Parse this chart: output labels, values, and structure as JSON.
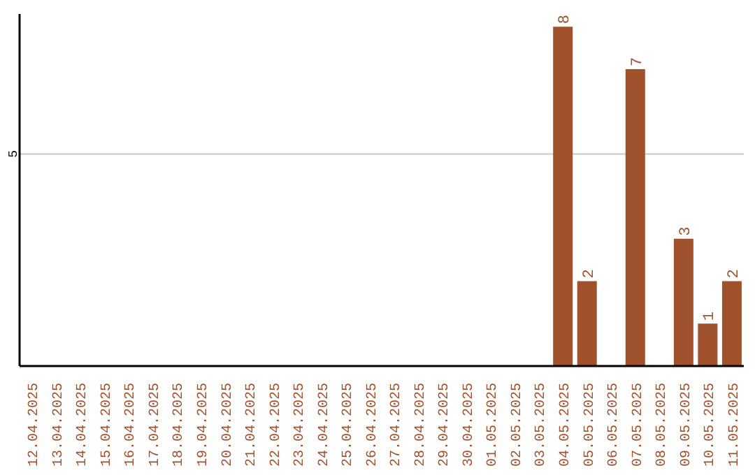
{
  "chart_data": {
    "type": "bar",
    "categories": [
      "12.04.2025",
      "13.04.2025",
      "14.04.2025",
      "15.04.2025",
      "16.04.2025",
      "17.04.2025",
      "18.04.2025",
      "19.04.2025",
      "20.04.2025",
      "21.04.2025",
      "22.04.2025",
      "23.04.2025",
      "24.04.2025",
      "25.04.2025",
      "26.04.2025",
      "27.04.2025",
      "28.04.2025",
      "29.04.2025",
      "30.04.2025",
      "01.05.2025",
      "02.05.2025",
      "03.05.2025",
      "04.05.2025",
      "05.05.2025",
      "06.05.2025",
      "07.05.2025",
      "08.05.2025",
      "09.05.2025",
      "10.05.2025",
      "11.05.2025"
    ],
    "values": [
      null,
      null,
      null,
      null,
      null,
      null,
      null,
      null,
      null,
      null,
      null,
      null,
      null,
      null,
      null,
      null,
      null,
      null,
      null,
      null,
      null,
      null,
      8,
      2,
      null,
      7,
      null,
      3,
      1,
      2
    ],
    "color": "#a0522d",
    "ylim": [
      0,
      8.3
    ],
    "yticks": [
      5
    ],
    "grid": "y",
    "data_labels": true
  }
}
